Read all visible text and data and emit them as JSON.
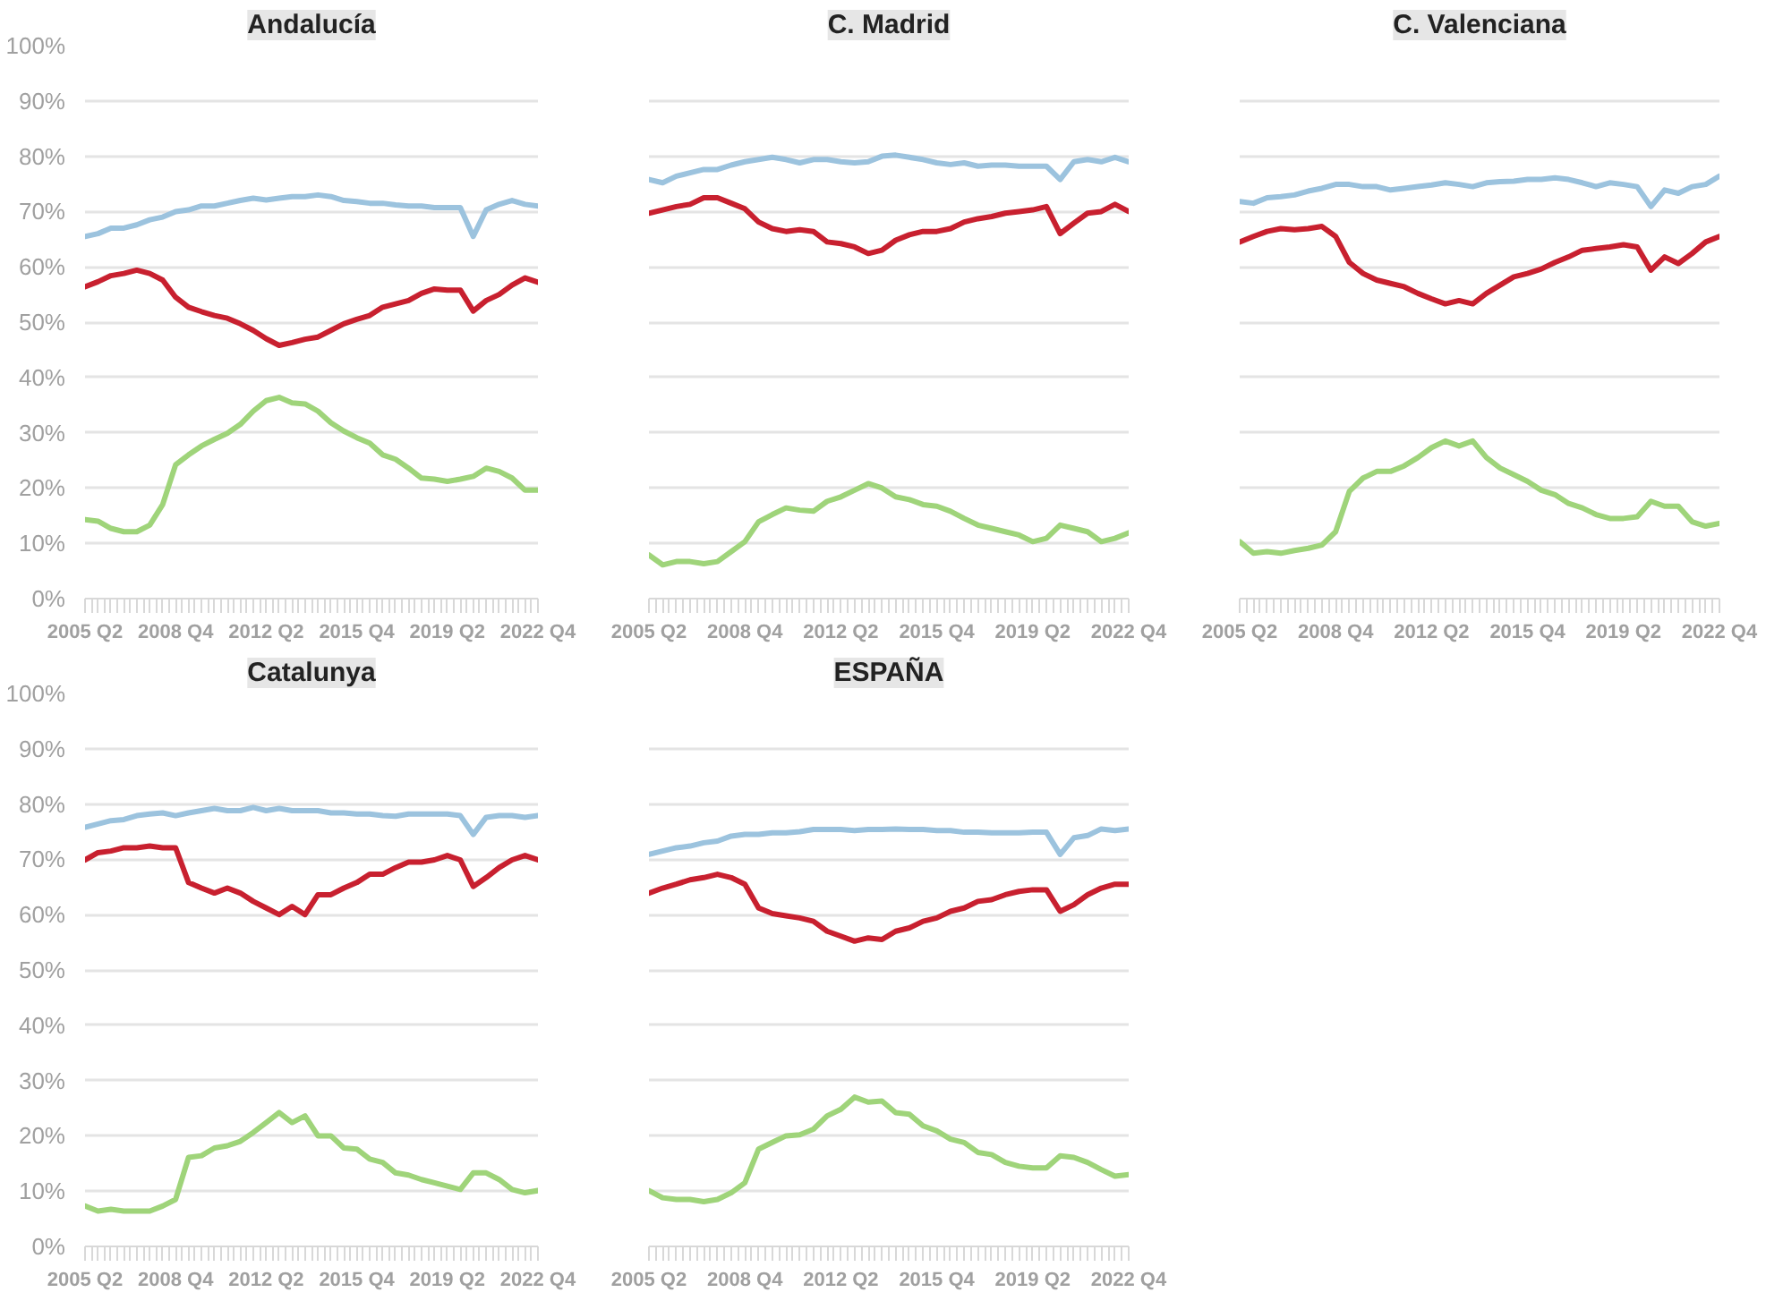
{
  "chart_data": [
    {
      "type": "line",
      "title": "Andalucía",
      "categories": [
        "2005 Q2",
        null,
        null,
        null,
        null,
        null,
        null,
        "2008 Q4",
        null,
        null,
        null,
        null,
        null,
        null,
        "2012 Q2",
        null,
        null,
        null,
        null,
        null,
        null,
        "2015 Q4",
        null,
        null,
        null,
        null,
        null,
        null,
        "2019 Q2",
        null,
        null,
        null,
        null,
        null,
        null,
        "2022 Q4"
      ],
      "ylim": [
        0,
        100
      ],
      "yticks": [
        {
          "value": 0,
          "label": "0%"
        },
        {
          "value": 10,
          "label": "10%"
        },
        {
          "value": 20,
          "label": "20%"
        },
        {
          "value": 30,
          "label": "30%"
        },
        {
          "value": 40,
          "label": "40%"
        },
        {
          "value": 50,
          "label": "50%"
        },
        {
          "value": 60,
          "label": "60%"
        },
        {
          "value": 70,
          "label": "70%"
        },
        {
          "value": 80,
          "label": "80%"
        },
        {
          "value": 90,
          "label": "90%"
        },
        {
          "value": 100,
          "label": "100%"
        }
      ],
      "grid": "y",
      "series": [
        {
          "color": "#9cc3de",
          "values": [
            65.5,
            66,
            67,
            67,
            67.6,
            68.5,
            69,
            70,
            70.3,
            71,
            71,
            71.5,
            72,
            72.4,
            72.1,
            72.4,
            72.7,
            72.7,
            73,
            72.7,
            72,
            71.8,
            71.5,
            71.5,
            71.2,
            71,
            71,
            70.7,
            70.7,
            70.7,
            65.5,
            70.3,
            71.3,
            72,
            71.3,
            71
          ]
        },
        {
          "color": "#c8202f",
          "values": [
            56.4,
            57.3,
            58.4,
            58.8,
            59.4,
            58.8,
            57.6,
            54.5,
            52.7,
            51.9,
            51.2,
            50.7,
            49.7,
            48.5,
            47,
            45.8,
            46.3,
            46.9,
            47.3,
            48.5,
            49.7,
            50.5,
            51.2,
            52.7,
            53.3,
            53.9,
            55.2,
            56,
            55.8,
            55.8,
            52,
            53.9,
            55,
            56.7,
            58,
            57.2
          ]
        },
        {
          "color": "#9fd47a",
          "values": [
            14.3,
            14,
            12.7,
            12.1,
            12.1,
            13.3,
            17,
            24.2,
            26,
            27.6,
            28.8,
            29.9,
            31.5,
            33.9,
            35.8,
            36.4,
            35.4,
            35.2,
            33.9,
            31.8,
            30.3,
            29.1,
            28.1,
            26,
            25.2,
            23.6,
            21.8,
            21.6,
            21.2,
            21.6,
            22.1,
            23.6,
            23,
            21.8,
            19.6,
            19.6
          ]
        }
      ]
    },
    {
      "type": "line",
      "title": "C. Madrid",
      "tick_labels": "x",
      "categories": [
        "2005 Q2",
        null,
        null,
        null,
        null,
        null,
        null,
        "2008 Q4",
        null,
        null,
        null,
        null,
        null,
        null,
        "2012 Q2",
        null,
        null,
        null,
        null,
        null,
        null,
        "2015 Q4",
        null,
        null,
        null,
        null,
        null,
        null,
        "2019 Q2",
        null,
        null,
        null,
        null,
        null,
        null,
        "2022 Q4"
      ],
      "ylim": [
        0,
        100
      ],
      "yticks": [
        0,
        10,
        20,
        30,
        40,
        50,
        60,
        70,
        80,
        90,
        100
      ],
      "grid": "y",
      "series": [
        {
          "color": "#9cc3de",
          "values": [
            75.8,
            75.2,
            76.4,
            77,
            77.6,
            77.6,
            78.4,
            79,
            79.4,
            79.8,
            79.4,
            78.8,
            79.4,
            79.4,
            79,
            78.8,
            79,
            80,
            80.2,
            79.8,
            79.4,
            78.8,
            78.5,
            78.8,
            78.2,
            78.4,
            78.4,
            78.2,
            78.2,
            78.2,
            75.8,
            79,
            79.4,
            79,
            79.8,
            79
          ]
        },
        {
          "color": "#c8202f",
          "values": [
            69.7,
            70.3,
            70.9,
            71.3,
            72.5,
            72.5,
            71.5,
            70.5,
            68.1,
            66.9,
            66.4,
            66.7,
            66.4,
            64.5,
            64.2,
            63.6,
            62.4,
            63,
            64.8,
            65.8,
            66.4,
            66.4,
            66.9,
            68.1,
            68.7,
            69.1,
            69.7,
            70,
            70.3,
            70.9,
            66,
            67.9,
            69.7,
            70,
            71.3,
            70
          ]
        },
        {
          "color": "#9fd47a",
          "values": [
            7.9,
            6.1,
            6.7,
            6.7,
            6.3,
            6.7,
            8.5,
            10.3,
            13.9,
            15.2,
            16.4,
            16,
            15.8,
            17.6,
            18.4,
            19.6,
            20.8,
            20,
            18.4,
            17.9,
            17,
            16.7,
            15.8,
            14.5,
            13.3,
            12.7,
            12.1,
            11.5,
            10.3,
            10.9,
            13.3,
            12.7,
            12.1,
            10.3,
            10.9,
            11.9
          ]
        }
      ]
    },
    {
      "type": "line",
      "title": "C. Valenciana",
      "tick_labels": "x",
      "categories": [
        "2005 Q2",
        null,
        null,
        null,
        null,
        null,
        null,
        "2008 Q4",
        null,
        null,
        null,
        null,
        null,
        null,
        "2012 Q2",
        null,
        null,
        null,
        null,
        null,
        null,
        "2015 Q4",
        null,
        null,
        null,
        null,
        null,
        null,
        "2019 Q2",
        null,
        null,
        null,
        null,
        null,
        null,
        "2022 Q4"
      ],
      "ylim": [
        0,
        100
      ],
      "yticks": [
        0,
        10,
        20,
        30,
        40,
        50,
        60,
        70,
        80,
        90,
        100
      ],
      "grid": "y",
      "series": [
        {
          "color": "#9cc3de",
          "values": [
            71.8,
            71.5,
            72.5,
            72.7,
            73,
            73.7,
            74.2,
            74.9,
            74.9,
            74.5,
            74.5,
            73.9,
            74.2,
            74.5,
            74.8,
            75.2,
            74.9,
            74.5,
            75.2,
            75.4,
            75.5,
            75.8,
            75.8,
            76.1,
            75.8,
            75.2,
            74.5,
            75.2,
            74.9,
            74.5,
            70.9,
            73.9,
            73.3,
            74.5,
            74.9,
            76.4
          ]
        },
        {
          "color": "#c8202f",
          "values": [
            64.5,
            65.5,
            66.4,
            66.9,
            66.7,
            66.9,
            67.3,
            65.5,
            60.8,
            58.8,
            57.6,
            57,
            56.4,
            55.2,
            54.2,
            53.3,
            53.9,
            53.3,
            55.2,
            56.7,
            58.2,
            58.8,
            59.6,
            60.8,
            61.8,
            63,
            63.3,
            63.6,
            64,
            63.6,
            59.4,
            61.8,
            60.6,
            62.4,
            64.5,
            65.5
          ]
        },
        {
          "color": "#9fd47a",
          "values": [
            10.3,
            8.2,
            8.5,
            8.2,
            8.7,
            9.1,
            9.7,
            12.1,
            19.4,
            21.8,
            23,
            23,
            24,
            25.5,
            27.3,
            28.5,
            27.6,
            28.5,
            25.5,
            23.6,
            22.4,
            21.2,
            19.6,
            18.8,
            17.2,
            16.4,
            15.2,
            14.5,
            14.5,
            14.8,
            17.6,
            16.7,
            16.7,
            13.9,
            13.1,
            13.6
          ]
        }
      ]
    },
    {
      "type": "line",
      "title": "Catalunya",
      "categories": [
        "2005 Q2",
        null,
        null,
        null,
        null,
        null,
        null,
        "2008 Q4",
        null,
        null,
        null,
        null,
        null,
        null,
        "2012 Q2",
        null,
        null,
        null,
        null,
        null,
        null,
        "2015 Q4",
        null,
        null,
        null,
        null,
        null,
        null,
        "2019 Q2",
        null,
        null,
        null,
        null,
        null,
        null,
        "2022 Q4"
      ],
      "ylim": [
        0,
        100
      ],
      "yticks": [
        {
          "value": 0,
          "label": "0%"
        },
        {
          "value": 10,
          "label": "10%"
        },
        {
          "value": 20,
          "label": "20%"
        },
        {
          "value": 30,
          "label": "30%"
        },
        {
          "value": 40,
          "label": "40%"
        },
        {
          "value": 50,
          "label": "50%"
        },
        {
          "value": 60,
          "label": "60%"
        },
        {
          "value": 70,
          "label": "70%"
        },
        {
          "value": 80,
          "label": "80%"
        },
        {
          "value": 90,
          "label": "90%"
        },
        {
          "value": 100,
          "label": "100%"
        }
      ],
      "grid": "y",
      "series": [
        {
          "color": "#9cc3de",
          "values": [
            75.8,
            76.4,
            77,
            77.2,
            77.9,
            78.2,
            78.4,
            77.9,
            78.4,
            78.8,
            79.2,
            78.8,
            78.8,
            79.4,
            78.8,
            79.2,
            78.8,
            78.8,
            78.8,
            78.4,
            78.4,
            78.2,
            78.2,
            77.9,
            77.8,
            78.2,
            78.2,
            78.2,
            78.2,
            77.9,
            74.5,
            77.6,
            77.9,
            77.9,
            77.6,
            77.9
          ]
        },
        {
          "color": "#c8202f",
          "values": [
            69.9,
            71.2,
            71.5,
            72.1,
            72.1,
            72.4,
            72.1,
            72.1,
            65.8,
            64.8,
            63.9,
            64.8,
            63.9,
            62.4,
            61.2,
            60,
            61.5,
            60,
            63.6,
            63.6,
            64.8,
            65.8,
            67.3,
            67.3,
            68.5,
            69.5,
            69.5,
            69.9,
            70.7,
            69.9,
            65.1,
            66.7,
            68.5,
            69.9,
            70.7,
            69.9
          ]
        },
        {
          "color": "#9fd47a",
          "values": [
            7.3,
            6.4,
            6.7,
            6.4,
            6.4,
            6.4,
            7.3,
            8.5,
            16.1,
            16.4,
            17.8,
            18.2,
            19,
            20.6,
            22.4,
            24.2,
            22.4,
            23.6,
            20,
            20,
            17.8,
            17.6,
            15.8,
            15.2,
            13.3,
            12.9,
            12.1,
            11.5,
            10.9,
            10.3,
            13.3,
            13.3,
            12.1,
            10.3,
            9.7,
            10.1
          ]
        }
      ]
    },
    {
      "type": "line",
      "title": "ESPAÑA",
      "tick_labels": "x",
      "categories": [
        "2005 Q2",
        null,
        null,
        null,
        null,
        null,
        null,
        "2008 Q4",
        null,
        null,
        null,
        null,
        null,
        null,
        "2012 Q2",
        null,
        null,
        null,
        null,
        null,
        null,
        "2015 Q4",
        null,
        null,
        null,
        null,
        null,
        null,
        "2019 Q2",
        null,
        null,
        null,
        null,
        null,
        null,
        "2022 Q4"
      ],
      "ylim": [
        0,
        100
      ],
      "yticks": [
        0,
        10,
        20,
        30,
        40,
        50,
        60,
        70,
        80,
        90,
        100
      ],
      "grid": "y",
      "series": [
        {
          "color": "#9cc3de",
          "values": [
            70.9,
            71.5,
            72.1,
            72.4,
            73,
            73.3,
            74.2,
            74.5,
            74.5,
            74.8,
            74.8,
            75,
            75.4,
            75.4,
            75.4,
            75.2,
            75.4,
            75.4,
            75.5,
            75.4,
            75.4,
            75.2,
            75.2,
            74.9,
            74.9,
            74.8,
            74.8,
            74.8,
            74.9,
            74.9,
            70.9,
            73.9,
            74.3,
            75.5,
            75.2,
            75.5
          ]
        },
        {
          "color": "#c8202f",
          "values": [
            63.9,
            64.8,
            65.5,
            66.3,
            66.7,
            67.3,
            66.7,
            65.5,
            61.2,
            60.2,
            59.8,
            59.4,
            58.8,
            57,
            56.1,
            55.2,
            55.8,
            55.5,
            57,
            57.6,
            58.8,
            59.4,
            60.6,
            61.2,
            62.4,
            62.7,
            63.6,
            64.2,
            64.5,
            64.5,
            60.6,
            61.8,
            63.6,
            64.8,
            65.5,
            65.5
          ]
        },
        {
          "color": "#9fd47a",
          "values": [
            10.1,
            8.8,
            8.5,
            8.5,
            8.1,
            8.5,
            9.7,
            11.5,
            17.6,
            18.8,
            20,
            20.2,
            21.2,
            23.6,
            24.8,
            27,
            26.1,
            26.3,
            24.2,
            23.9,
            21.8,
            20.9,
            19.4,
            18.8,
            17,
            16.6,
            15.2,
            14.5,
            14.2,
            14.2,
            16.4,
            16.1,
            15.2,
            13.9,
            12.7,
            13
          ]
        }
      ]
    }
  ]
}
